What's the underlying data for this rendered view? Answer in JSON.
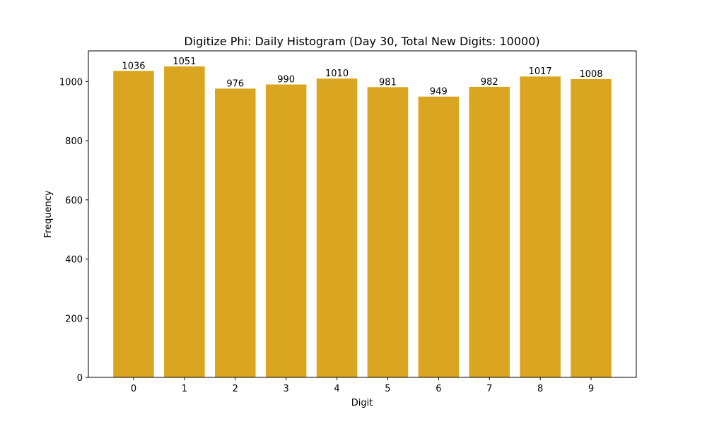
{
  "chart_data": {
    "type": "bar",
    "title": "Digitize Phi: Daily Histogram (Day 30, Total New Digits: 10000)",
    "xlabel": "Digit",
    "ylabel": "Frequency",
    "categories": [
      "0",
      "1",
      "2",
      "3",
      "4",
      "5",
      "6",
      "7",
      "8",
      "9"
    ],
    "values": [
      1036,
      1051,
      976,
      990,
      1010,
      981,
      949,
      982,
      1017,
      1008
    ],
    "bar_labels": [
      "1036",
      "1051",
      "976",
      "990",
      "1010",
      "981",
      "949",
      "982",
      "1017",
      "1008"
    ],
    "yticks": [
      0,
      200,
      400,
      600,
      800,
      1000
    ],
    "ylim": [
      0,
      1103.55
    ],
    "xlim": [
      -0.89,
      9.89
    ],
    "grid": false,
    "legend": null,
    "bar_color": "#DAA520"
  }
}
